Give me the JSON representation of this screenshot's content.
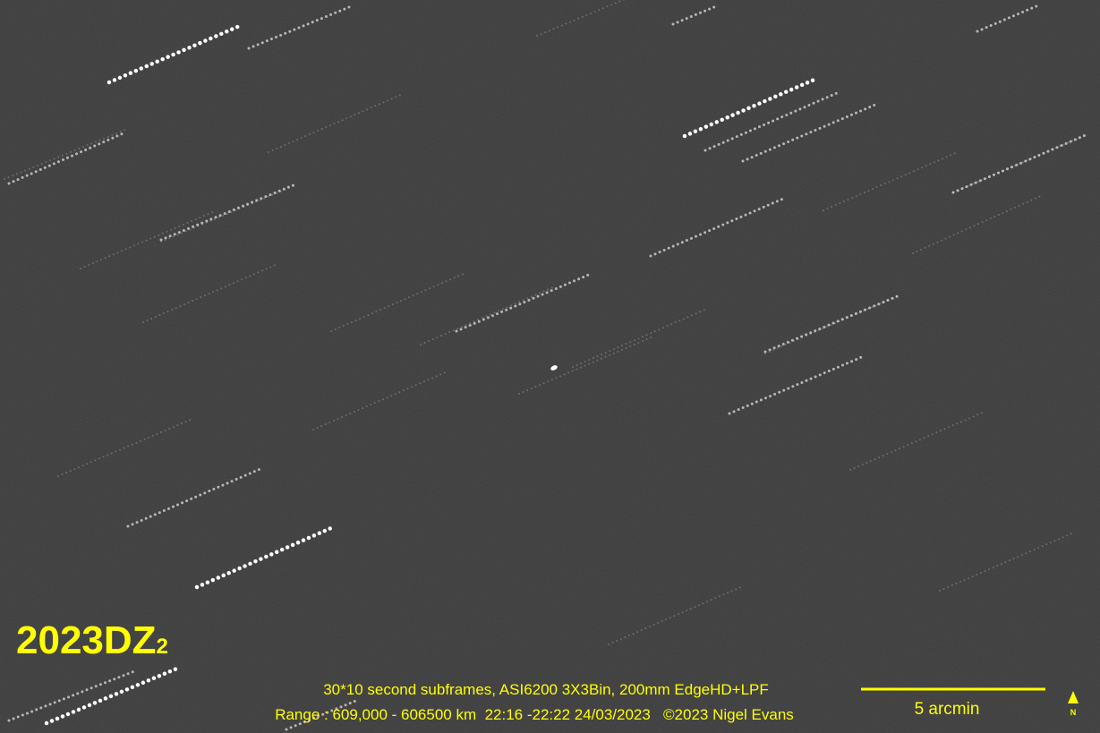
{
  "title": {
    "name": "2023DZ",
    "subscript": "2"
  },
  "caption": {
    "line1": "30*10 second subframes, ASI6200 3X3Bin, 200mm EdgeHD+LPF",
    "line2": "Range : 609,000 - 606500 km  22:16 -22:22 24/03/2023   ©2023 Nigel Evans"
  },
  "scale_bar": {
    "label": "5 arcmin"
  },
  "north_marker": {
    "label": "N"
  }
}
